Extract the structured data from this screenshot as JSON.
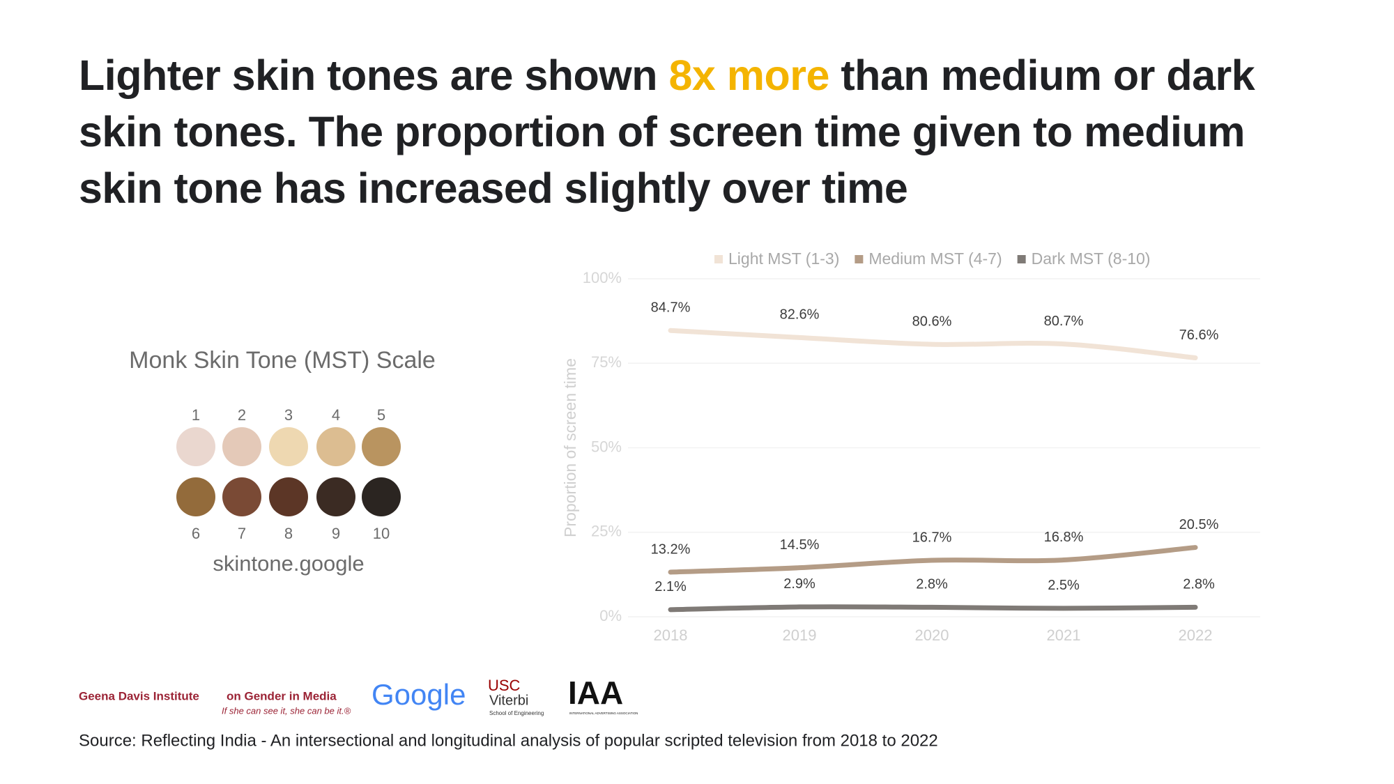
{
  "title_parts": [
    "Lighter skin tones are shown ",
    "8x more",
    " than medium or dark skin tones. The proportion of screen time given to medium skin tone has increased slightly over time"
  ],
  "chart_data": {
    "type": "line",
    "y_label": "Proportion of screen time",
    "categories": [
      "2018",
      "2019",
      "2020",
      "2021",
      "2022"
    ],
    "series": [
      {
        "name": "Light MST (1-3)",
        "color": "#f1e3d6",
        "values": [
          84.7,
          82.6,
          80.6,
          80.7,
          76.6
        ],
        "value_labels": [
          "84.7%",
          "82.6%",
          "80.6%",
          "80.7%",
          "76.6%"
        ]
      },
      {
        "name": "Medium MST (4-7)",
        "color": "#b49c86",
        "values": [
          13.2,
          14.5,
          16.7,
          16.8,
          20.5
        ],
        "value_labels": [
          "13.2%",
          "14.5%",
          "16.7%",
          "16.8%",
          "20.5%"
        ]
      },
      {
        "name": "Dark MST (8-10)",
        "color": "#7f7a76",
        "values": [
          2.1,
          2.9,
          2.8,
          2.5,
          2.8
        ],
        "value_labels": [
          "2.1%",
          "2.9%",
          "2.8%",
          "2.5%",
          "2.8%"
        ]
      }
    ],
    "ylim": [
      0,
      100
    ],
    "yticks": [
      {
        "value": 0,
        "label": "0%"
      },
      {
        "value": 25,
        "label": "25%"
      },
      {
        "value": 50,
        "label": "50%"
      },
      {
        "value": 75,
        "label": "75%"
      },
      {
        "value": 100,
        "label": "100%"
      }
    ],
    "grid": true,
    "legend": "top"
  },
  "mst_scale": {
    "title": "Monk Skin Tone (MST) Scale",
    "url": "skintone.google",
    "tones": [
      {
        "label": "1",
        "color": "#ead7cf"
      },
      {
        "label": "2",
        "color": "#e4c9b8"
      },
      {
        "label": "3",
        "color": "#eed8b1"
      },
      {
        "label": "4",
        "color": "#dcbd91"
      },
      {
        "label": "5",
        "color": "#b99460"
      },
      {
        "label": "6",
        "color": "#936b3b"
      },
      {
        "label": "7",
        "color": "#7a4a35"
      },
      {
        "label": "8",
        "color": "#5c3626"
      },
      {
        "label": "9",
        "color": "#3b2b23"
      },
      {
        "label": "10",
        "color": "#2b2521"
      }
    ]
  },
  "logos": {
    "gdi_name": "Geena Davis Institute",
    "gdi_sub": "on Gender in Media",
    "gdi_tagline": "If she can see it, she can be it.®",
    "google": "Google",
    "usc": "USC",
    "viterbi": "Viterbi",
    "usc_school": "School of Engineering",
    "iaa": "IAA",
    "iaa_sub": "INTERNATIONAL ADVERTISING ASSOCIATION"
  },
  "source": "Source: Reflecting India - An intersectional and longitudinal analysis of popular scripted television from 2018 to 2022"
}
